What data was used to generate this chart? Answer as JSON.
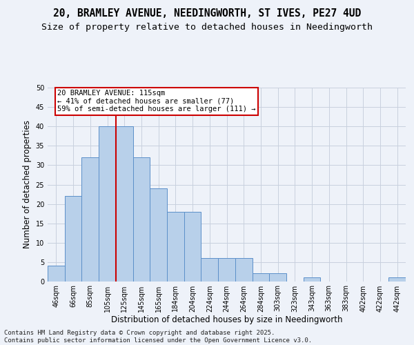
{
  "title_line1": "20, BRAMLEY AVENUE, NEEDINGWORTH, ST IVES, PE27 4UD",
  "title_line2": "Size of property relative to detached houses in Needingworth",
  "xlabel": "Distribution of detached houses by size in Needingworth",
  "ylabel": "Number of detached properties",
  "categories": [
    "46sqm",
    "66sqm",
    "85sqm",
    "105sqm",
    "125sqm",
    "145sqm",
    "165sqm",
    "184sqm",
    "204sqm",
    "224sqm",
    "244sqm",
    "264sqm",
    "284sqm",
    "303sqm",
    "323sqm",
    "343sqm",
    "363sqm",
    "383sqm",
    "402sqm",
    "422sqm",
    "442sqm"
  ],
  "values": [
    4,
    22,
    32,
    40,
    40,
    32,
    24,
    18,
    18,
    6,
    6,
    6,
    2,
    2,
    0,
    1,
    0,
    0,
    0,
    0,
    1
  ],
  "bar_color": "#b8d0ea",
  "bar_edge_color": "#5b8fc9",
  "background_color": "#eef2f9",
  "grid_color": "#c8d0de",
  "annotation_line1": "20 BRAMLEY AVENUE: 115sqm",
  "annotation_line2": "← 41% of detached houses are smaller (77)",
  "annotation_line3": "59% of semi-detached houses are larger (111) →",
  "annotation_box_color": "#cc0000",
  "red_line_x": 3.5,
  "ylim": [
    0,
    50
  ],
  "yticks": [
    0,
    5,
    10,
    15,
    20,
    25,
    30,
    35,
    40,
    45,
    50
  ],
  "footer_line1": "Contains HM Land Registry data © Crown copyright and database right 2025.",
  "footer_line2": "Contains public sector information licensed under the Open Government Licence v3.0.",
  "title_fontsize": 10.5,
  "subtitle_fontsize": 9.5,
  "axis_label_fontsize": 8.5,
  "tick_fontsize": 7,
  "annotation_fontsize": 7.5,
  "footer_fontsize": 6.5
}
